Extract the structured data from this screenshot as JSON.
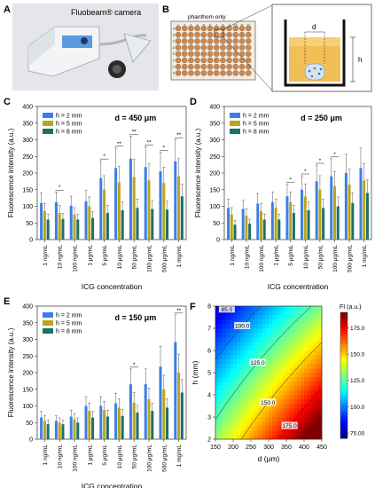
{
  "panels": {
    "A": {
      "letter": "A",
      "camera_label": "Fluobeam® camera"
    },
    "B": {
      "letter": "B",
      "plate_note": "phanthom only",
      "d_label": "d",
      "h_label": "h",
      "plate_cols": [
        "1",
        "2",
        "3",
        "4",
        "5",
        "6",
        "7",
        "8",
        "9",
        "10",
        "11",
        "12"
      ],
      "plate_rows": [
        "A",
        "B",
        "C",
        "D",
        "E",
        "F",
        "G",
        "H"
      ]
    }
  },
  "colors": {
    "h2": "#3d7ee6",
    "h5": "#bba51a",
    "h8": "#1f6f6a"
  },
  "chart_data": [
    {
      "panel": "C",
      "type": "bar",
      "title": "d = 450 μm",
      "xlabel": "ICG concentration",
      "ylabel": "Fluorescence intensity (a.u.)",
      "ylim": [
        0,
        400
      ],
      "yticks": [
        "0",
        "50",
        "100",
        "150",
        "200",
        "250",
        "300",
        "350",
        "400"
      ],
      "categories": [
        "1 ng/mL",
        "10 ng/mL",
        "100 ng/mL",
        "1 μg/mL",
        "5 μg/mL",
        "10 μg/mL",
        "50 μg/mL",
        "100 μg/mL",
        "500 μg/mL",
        "1 mg/mL"
      ],
      "legend_position": "top-left",
      "series": [
        {
          "name": "h = 2 mm",
          "values": [
            110,
            112,
            102,
            115,
            185,
            215,
            243,
            218,
            205,
            235
          ]
        },
        {
          "name": "h = 5 mm",
          "values": [
            85,
            80,
            75,
            100,
            150,
            172,
            188,
            178,
            170,
            190
          ]
        },
        {
          "name": "h = 8 mm",
          "values": [
            60,
            62,
            60,
            65,
            80,
            88,
            95,
            92,
            90,
            130
          ]
        }
      ],
      "significance": [
        "",
        "*",
        "",
        "",
        "*",
        "**",
        "**",
        "**",
        "*",
        "**"
      ]
    },
    {
      "panel": "D",
      "type": "bar",
      "title": "d = 250 μm",
      "xlabel": "ICG concentration",
      "ylabel": "Fluorescence intensity (a.u.)",
      "ylim": [
        0,
        400
      ],
      "yticks": [
        "0",
        "50",
        "100",
        "150",
        "200",
        "250",
        "300",
        "350",
        "400"
      ],
      "categories": [
        "1 ng/mL",
        "10 ng/mL",
        "100 ng/mL",
        "1 μg/mL",
        "5 μg/mL",
        "10 μg/mL",
        "50 μg/mL",
        "100 μg/mL",
        "500 μg/mL",
        "1 mg/mL"
      ],
      "legend_position": "top-left",
      "series": [
        {
          "name": "h = 2 mm",
          "values": [
            95,
            92,
            108,
            112,
            130,
            150,
            175,
            190,
            200,
            215
          ]
        },
        {
          "name": "h = 5 mm",
          "values": [
            75,
            72,
            85,
            95,
            112,
            130,
            150,
            160,
            165,
            178
          ]
        },
        {
          "name": "h = 8 mm",
          "values": [
            45,
            48,
            60,
            60,
            80,
            88,
            95,
            100,
            110,
            140
          ]
        }
      ],
      "significance": [
        "",
        "",
        "",
        "",
        "*",
        "*",
        "*",
        "*",
        "",
        ""
      ]
    },
    {
      "panel": "E",
      "type": "bar",
      "title": "d = 150 μm",
      "xlabel": "ICG concentration",
      "ylabel": "Fluorescence intensity (a.u.)",
      "ylim": [
        0,
        400
      ],
      "yticks": [
        "0",
        "50",
        "100",
        "150",
        "200",
        "250",
        "300",
        "350",
        "400"
      ],
      "categories": [
        "1 ng/mL",
        "10 ng/mL",
        "100 ng/mL",
        "1 μg/mL",
        "5 μg/mL",
        "10 μg/mL",
        "50 μg/mL",
        "100 μg/mL",
        "500 μg/mL",
        "1 mg/mL"
      ],
      "legend_position": "top-left",
      "series": [
        {
          "name": "h = 2 mm",
          "values": [
            65,
            55,
            68,
            100,
            100,
            108,
            165,
            165,
            218,
            292
          ]
        },
        {
          "name": "h = 5 mm",
          "values": [
            55,
            50,
            60,
            85,
            88,
            95,
            110,
            120,
            150,
            200
          ]
        },
        {
          "name": "h = 8 mm",
          "values": [
            45,
            45,
            50,
            65,
            68,
            70,
            80,
            85,
            95,
            140
          ]
        }
      ],
      "significance": [
        "",
        "",
        "",
        "",
        "",
        "",
        "*",
        "",
        "",
        "**"
      ]
    },
    {
      "panel": "F",
      "type": "heatmap",
      "xlabel": "d (μm)",
      "ylabel": "h (mm)",
      "xlim": [
        150,
        450
      ],
      "ylim": [
        2,
        8
      ],
      "xticks": [
        "150",
        "200",
        "250",
        "300",
        "350",
        "400",
        "450"
      ],
      "yticks": [
        "2",
        "3",
        "4",
        "5",
        "6",
        "7",
        "8"
      ],
      "colorbar_title": "FI (a.u.)",
      "colorbar_ticks": [
        "75.00",
        "100.0",
        "125.0",
        "150.0",
        "175.0"
      ],
      "colorbar_range": [
        70,
        190
      ],
      "contour_labels": [
        "85.0",
        "100.0",
        "125.0",
        "150.0",
        "175.0"
      ]
    }
  ]
}
